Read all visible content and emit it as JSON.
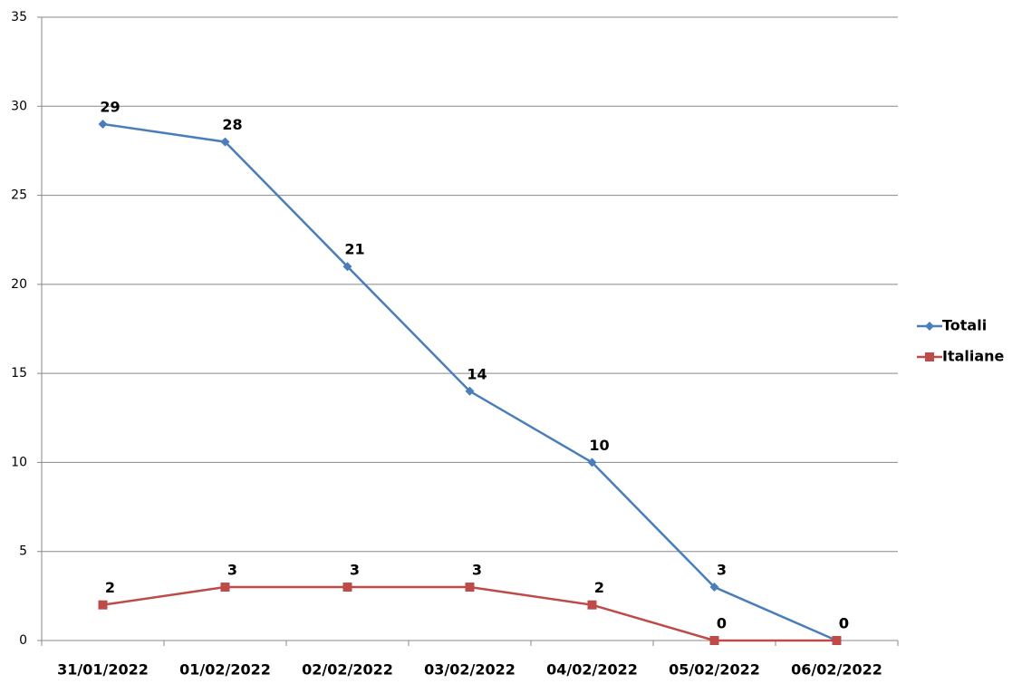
{
  "chart_data": {
    "type": "line",
    "categories": [
      "31/01/2022",
      "01/02/2022",
      "02/02/2022",
      "03/02/2022",
      "04/02/2022",
      "05/02/2022",
      "06/02/2022"
    ],
    "series": [
      {
        "name": "Totali",
        "color": "#4a7ebb",
        "marker": "diamond",
        "values": [
          29,
          28,
          21,
          14,
          10,
          3,
          0
        ]
      },
      {
        "name": "Italiane",
        "color": "#be4b48",
        "marker": "square",
        "values": [
          2,
          3,
          3,
          3,
          2,
          0,
          0
        ]
      }
    ],
    "ylim": [
      0,
      35
    ],
    "yticks": [
      0,
      5,
      10,
      15,
      20,
      25,
      30,
      35
    ],
    "grid": true,
    "legend": "right"
  }
}
